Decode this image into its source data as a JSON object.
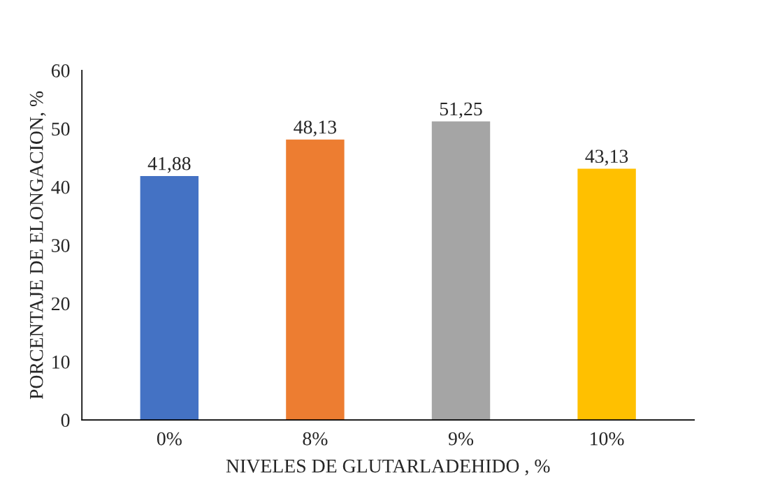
{
  "chart_data": {
    "type": "bar",
    "xlabel": "NIVELES DE GLUTARLADEHIDO , %",
    "ylabel": "PORCENTAJE DE ELONGACION, %",
    "categories": [
      "0%",
      "8%",
      "9%",
      "10%"
    ],
    "values": [
      41.88,
      48.13,
      51.25,
      43.13
    ],
    "value_labels": [
      "41,88",
      "48,13",
      "51,25",
      "43,13"
    ],
    "colors": [
      "#4472c4",
      "#ed7d31",
      "#a5a5a5",
      "#ffc000"
    ],
    "ylim": [
      0,
      60
    ],
    "yticks": [
      0,
      10,
      20,
      30,
      40,
      50,
      60
    ],
    "grid": false,
    "legend": false
  }
}
